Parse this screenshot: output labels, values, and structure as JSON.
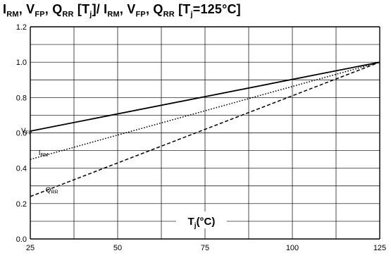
{
  "title": {
    "parts": [
      "I",
      "RM",
      ", V",
      "FP",
      ", Q",
      "RR",
      " [T",
      "j",
      "]/ I",
      "RM",
      ", V",
      "FP",
      ", Q",
      "RR",
      " [T",
      "j",
      "=125°C]"
    ]
  },
  "chart_data": {
    "type": "line",
    "xlabel": {
      "main": "T",
      "sub": "j",
      "rest": "(°C)"
    },
    "xlim": [
      25,
      125
    ],
    "ylim": [
      0.0,
      1.2
    ],
    "xticks": [
      25,
      50,
      75,
      100,
      125
    ],
    "xtick_labels": [
      "25",
      "50",
      "75",
      "100",
      "125"
    ],
    "yticks": [
      0.0,
      0.2,
      0.4,
      0.6,
      0.8,
      1.0,
      1.2
    ],
    "ytick_labels": [
      "0.0",
      "0.2",
      "0.4",
      "0.6",
      "0.8",
      "1.0",
      "1.2"
    ],
    "grid": true,
    "series": [
      {
        "name": "VFP",
        "label_main": "V",
        "label_sub": "FP",
        "style": "solid",
        "x": [
          25,
          125
        ],
        "y": [
          0.61,
          1.0
        ]
      },
      {
        "name": "IRM",
        "label_main": "I",
        "label_sub": "RM",
        "style": "dotted",
        "x": [
          25,
          125
        ],
        "y": [
          0.45,
          1.0
        ]
      },
      {
        "name": "QRR",
        "label_main": "Q",
        "label_sub": "RR",
        "style": "dashed",
        "x": [
          25,
          125
        ],
        "y": [
          0.24,
          1.0
        ]
      }
    ]
  }
}
